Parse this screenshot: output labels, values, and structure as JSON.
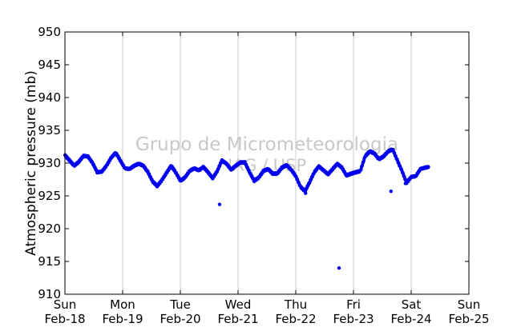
{
  "chart_data": {
    "type": "scatter",
    "ylabel": "Atmospheric pressure (mb)",
    "ylim": [
      910,
      950
    ],
    "yticks": [
      910,
      915,
      920,
      925,
      930,
      935,
      940,
      945,
      950
    ],
    "xlim": [
      0,
      7
    ],
    "xticks": [
      {
        "day": "Sun",
        "date": "Feb-18"
      },
      {
        "day": "Mon",
        "date": "Feb-19"
      },
      {
        "day": "Tue",
        "date": "Feb-20"
      },
      {
        "day": "Wed",
        "date": "Feb-21"
      },
      {
        "day": "Thu",
        "date": "Feb-22"
      },
      {
        "day": "Fri",
        "date": "Feb-23"
      },
      {
        "day": "Sat",
        "date": "Feb-24"
      },
      {
        "day": "Sun",
        "date": "Feb-25"
      }
    ],
    "grid": "vertical",
    "watermark": [
      "Grupo de Micrometeorologia",
      "IAG / USP"
    ],
    "series_color": "#0000ee",
    "series": [
      {
        "points": [
          [
            0.0,
            931.2
          ],
          [
            0.08,
            930.4
          ],
          [
            0.16,
            929.6
          ],
          [
            0.24,
            930.2
          ],
          [
            0.32,
            931.1
          ],
          [
            0.4,
            931.0
          ],
          [
            0.48,
            930.0
          ],
          [
            0.56,
            928.6
          ],
          [
            0.64,
            928.7
          ],
          [
            0.72,
            929.6
          ],
          [
            0.8,
            930.8
          ],
          [
            0.88,
            931.6
          ],
          [
            0.96,
            930.4
          ],
          [
            1.04,
            929.2
          ],
          [
            1.12,
            929.1
          ],
          [
            1.2,
            929.6
          ],
          [
            1.28,
            929.9
          ],
          [
            1.36,
            929.6
          ],
          [
            1.44,
            928.6
          ],
          [
            1.52,
            927.2
          ],
          [
            1.6,
            926.5
          ],
          [
            1.68,
            927.4
          ],
          [
            1.76,
            928.5
          ],
          [
            1.84,
            929.6
          ],
          [
            1.92,
            928.6
          ],
          [
            2.0,
            927.3
          ],
          [
            2.08,
            927.8
          ],
          [
            2.16,
            928.8
          ],
          [
            2.24,
            929.2
          ],
          [
            2.32,
            928.9
          ],
          [
            2.4,
            929.4
          ],
          [
            2.48,
            928.6
          ],
          [
            2.56,
            927.7
          ],
          [
            2.64,
            928.8
          ],
          [
            2.72,
            930.4
          ],
          [
            2.8,
            929.9
          ],
          [
            2.88,
            929.0
          ],
          [
            2.96,
            929.6
          ],
          [
            3.04,
            930.1
          ],
          [
            3.12,
            930.1
          ],
          [
            3.2,
            928.6
          ],
          [
            3.28,
            927.3
          ],
          [
            3.36,
            927.8
          ],
          [
            3.44,
            928.8
          ],
          [
            3.52,
            929.1
          ],
          [
            3.6,
            928.4
          ],
          [
            3.68,
            928.4
          ],
          [
            3.76,
            929.3
          ],
          [
            3.84,
            929.7
          ],
          [
            3.92,
            929.0
          ],
          [
            4.0,
            928.0
          ],
          [
            4.08,
            926.4
          ],
          [
            4.16,
            925.7
          ],
          [
            4.24,
            927.1
          ],
          [
            4.32,
            928.6
          ],
          [
            4.4,
            929.5
          ],
          [
            4.48,
            928.9
          ],
          [
            4.56,
            928.3
          ],
          [
            4.64,
            929.1
          ],
          [
            4.72,
            929.9
          ],
          [
            4.8,
            929.3
          ],
          [
            4.88,
            928.1
          ],
          [
            4.96,
            928.4
          ],
          [
            5.04,
            928.6
          ],
          [
            5.12,
            928.8
          ],
          [
            5.2,
            931.0
          ],
          [
            5.28,
            931.8
          ],
          [
            5.36,
            931.5
          ],
          [
            5.44,
            930.6
          ],
          [
            5.52,
            931.0
          ],
          [
            5.6,
            931.8
          ],
          [
            5.68,
            932.1
          ],
          [
            5.76,
            930.4
          ],
          [
            5.84,
            928.8
          ],
          [
            5.92,
            927.0
          ],
          [
            6.0,
            927.9
          ],
          [
            6.08,
            928.0
          ],
          [
            6.16,
            929.1
          ],
          [
            6.24,
            929.3
          ],
          [
            6.3,
            929.4
          ],
          [
            2.68,
            923.7
          ],
          [
            4.75,
            914.0
          ],
          [
            5.65,
            925.7
          ],
          [
            5.9,
            926.9
          ],
          [
            4.17,
            925.4
          ]
        ]
      }
    ]
  }
}
